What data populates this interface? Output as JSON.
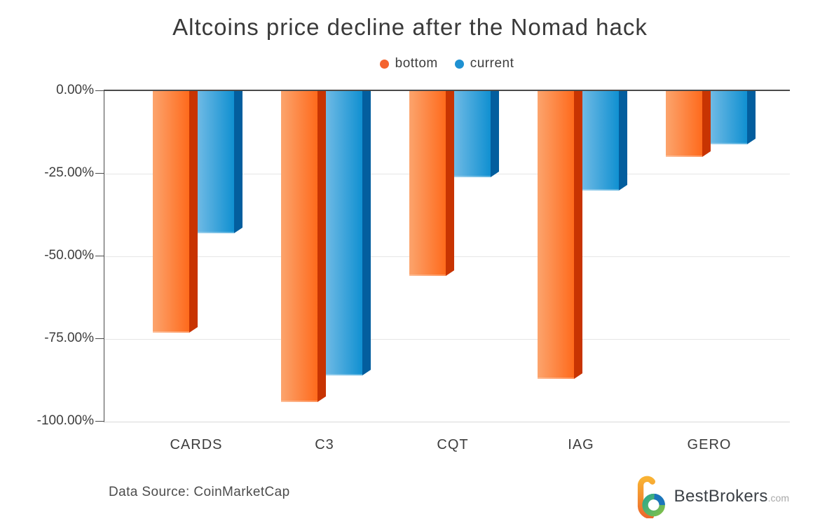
{
  "title": "Altcoins price decline after the Nomad hack",
  "legend": [
    {
      "label": "bottom",
      "color": "#F4632E"
    },
    {
      "label": "current",
      "color": "#1E91D2"
    }
  ],
  "chart_data": {
    "type": "bar",
    "title": "Altcoins price decline after the Nomad hack",
    "categories": [
      "CARDS",
      "C3",
      "CQT",
      "IAG",
      "GERO"
    ],
    "series": [
      {
        "name": "bottom",
        "values": [
          -73,
          -94,
          -56,
          -87,
          -20
        ],
        "colors": {
          "face_light": "#FCA46D",
          "face_dark": "#FE6A1C",
          "side": "#C83402"
        }
      },
      {
        "name": "current",
        "values": [
          -43,
          -86,
          -26,
          -30,
          -16
        ],
        "colors": {
          "face_light": "#6FBAE5",
          "face_dark": "#1090D1",
          "side": "#035E9E"
        }
      }
    ],
    "yticks": [
      {
        "label": "0.00%",
        "value": 0
      },
      {
        "label": "-25.00%",
        "value": -25
      },
      {
        "label": "-50.00%",
        "value": -50
      },
      {
        "label": "-75.00%",
        "value": -75
      },
      {
        "label": "-100.00%",
        "value": -100
      }
    ],
    "ylim": [
      0,
      -100
    ],
    "unit": "%",
    "grid": true,
    "legend_position": "top-center",
    "style": "3d-columns"
  },
  "footer": {
    "source": "Data Source: CoinMarketCap"
  },
  "branding": {
    "name": "BestBrokers",
    "tld": ".com"
  }
}
